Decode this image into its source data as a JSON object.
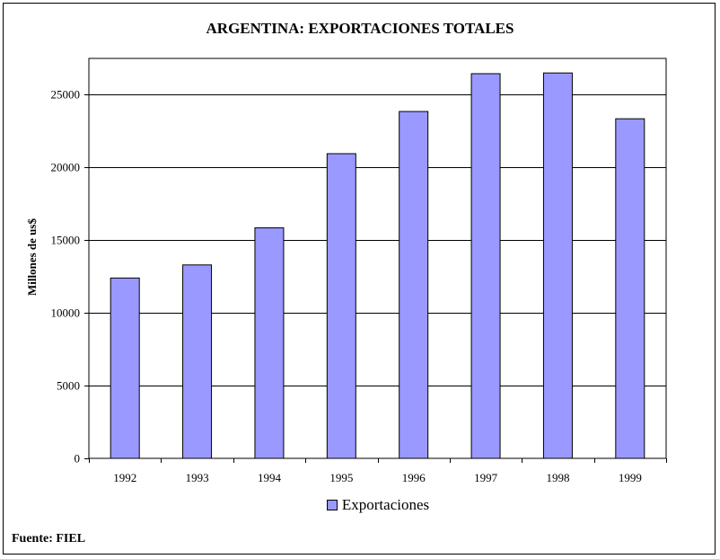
{
  "chart_data": {
    "type": "bar",
    "title": "ARGENTINA: EXPORTACIONES TOTALES",
    "xlabel": "",
    "ylabel": "Millones de us$",
    "categories": [
      "1992",
      "1993",
      "1994",
      "1995",
      "1996",
      "1997",
      "1998",
      "1999"
    ],
    "series": [
      {
        "name": "Exportaciones",
        "values": [
          12400,
          13300,
          15850,
          20950,
          23850,
          26450,
          26500,
          23350
        ],
        "color": "#9999ff"
      }
    ],
    "ylim": [
      0,
      27500
    ],
    "yticks": [
      0,
      5000,
      10000,
      15000,
      20000,
      25000
    ],
    "grid": true,
    "legend_position": "bottom"
  },
  "source": "Fuente: FIEL"
}
